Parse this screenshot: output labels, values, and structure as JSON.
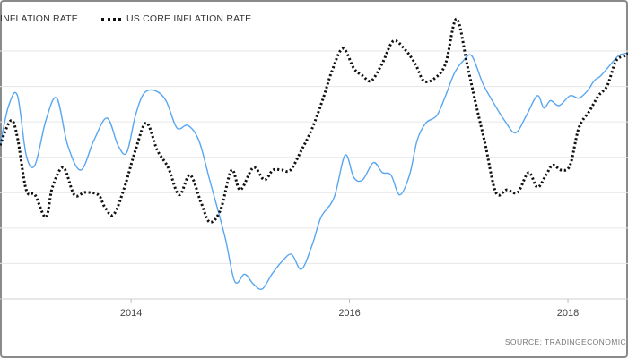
{
  "chart_data": {
    "type": "line",
    "legend": {
      "placement": "top-left",
      "items": [
        {
          "label": "INFLATION RATE",
          "style": "solid"
        },
        {
          "label": "US CORE INFLATION RATE",
          "style": "dotted"
        }
      ]
    },
    "xlim": [
      2012.8,
      2018.55
    ],
    "ylim": [
      0,
      1
    ],
    "y_tick_labels_visible": false,
    "grid": {
      "horizontal": true,
      "vertical": false,
      "count": 7
    },
    "x_ticks": [
      {
        "value": 2014,
        "label": "2014"
      },
      {
        "value": 2016,
        "label": "2016"
      },
      {
        "value": 2018,
        "label": "2018"
      }
    ],
    "series": [
      {
        "name": "INFLATION RATE",
        "color": "#58a6f0",
        "style": "solid",
        "x": [
          2012.8,
          2012.88,
          2012.96,
          2013.04,
          2013.12,
          2013.22,
          2013.32,
          2013.42,
          2013.54,
          2013.66,
          2013.78,
          2013.88,
          2013.96,
          2014.04,
          2014.12,
          2014.22,
          2014.32,
          2014.42,
          2014.52,
          2014.62,
          2014.72,
          2014.86,
          2014.95,
          2015.04,
          2015.12,
          2015.2,
          2015.29,
          2015.38,
          2015.47,
          2015.56,
          2015.66,
          2015.74,
          2015.86,
          2015.96,
          2016.04,
          2016.12,
          2016.22,
          2016.3,
          2016.38,
          2016.46,
          2016.55,
          2016.62,
          2016.7,
          2016.8,
          2016.88,
          2016.96,
          2017.04,
          2017.12,
          2017.22,
          2017.32,
          2017.42,
          2017.52,
          2017.62,
          2017.72,
          2017.78,
          2017.84,
          2017.92,
          2018.02,
          2018.1,
          2018.18,
          2018.24,
          2018.3,
          2018.38,
          2018.46,
          2018.52,
          2018.55
        ],
        "y": [
          0.62,
          0.78,
          0.82,
          0.58,
          0.54,
          0.72,
          0.81,
          0.62,
          0.52,
          0.64,
          0.73,
          0.62,
          0.59,
          0.74,
          0.83,
          0.84,
          0.8,
          0.69,
          0.7,
          0.64,
          0.48,
          0.25,
          0.07,
          0.1,
          0.06,
          0.04,
          0.1,
          0.15,
          0.18,
          0.12,
          0.22,
          0.33,
          0.41,
          0.58,
          0.49,
          0.48,
          0.55,
          0.51,
          0.5,
          0.42,
          0.5,
          0.64,
          0.71,
          0.74,
          0.82,
          0.91,
          0.96,
          0.98,
          0.87,
          0.79,
          0.72,
          0.67,
          0.74,
          0.82,
          0.77,
          0.8,
          0.78,
          0.82,
          0.81,
          0.84,
          0.88,
          0.9,
          0.94,
          0.98,
          0.99,
          0.99
        ]
      },
      {
        "name": "US CORE INFLATION RATE",
        "color": "#111111",
        "style": "dotted",
        "x": [
          2012.8,
          2012.9,
          2012.96,
          2013.04,
          2013.12,
          2013.22,
          2013.28,
          2013.38,
          2013.48,
          2013.58,
          2013.7,
          2013.76,
          2013.84,
          2013.94,
          2014.04,
          2014.14,
          2014.24,
          2014.34,
          2014.44,
          2014.54,
          2014.64,
          2014.72,
          2014.82,
          2014.92,
          2015.0,
          2015.12,
          2015.22,
          2015.3,
          2015.38,
          2015.46,
          2015.56,
          2015.66,
          2015.76,
          2015.84,
          2015.94,
          2016.04,
          2016.12,
          2016.2,
          2016.3,
          2016.4,
          2016.5,
          2016.6,
          2016.68,
          2016.78,
          2016.88,
          2016.98,
          2017.08,
          2017.16,
          2017.24,
          2017.34,
          2017.44,
          2017.54,
          2017.64,
          2017.72,
          2017.8,
          2017.86,
          2017.94,
          2018.02,
          2018.1,
          2018.2,
          2018.28,
          2018.36,
          2018.44,
          2018.52,
          2018.55
        ],
        "y": [
          0.62,
          0.72,
          0.65,
          0.44,
          0.42,
          0.33,
          0.45,
          0.53,
          0.42,
          0.43,
          0.42,
          0.37,
          0.34,
          0.45,
          0.6,
          0.71,
          0.6,
          0.53,
          0.42,
          0.5,
          0.39,
          0.31,
          0.36,
          0.52,
          0.44,
          0.53,
          0.48,
          0.52,
          0.52,
          0.52,
          0.6,
          0.69,
          0.81,
          0.92,
          1.01,
          0.93,
          0.9,
          0.88,
          0.95,
          1.04,
          1.01,
          0.95,
          0.88,
          0.89,
          0.95,
          1.13,
          0.94,
          0.78,
          0.63,
          0.43,
          0.44,
          0.43,
          0.51,
          0.45,
          0.5,
          0.54,
          0.52,
          0.54,
          0.69,
          0.76,
          0.82,
          0.86,
          0.96,
          0.98,
          0.99
        ]
      }
    ]
  },
  "source_text": "SOURCE: TRADINGECONOMIC"
}
